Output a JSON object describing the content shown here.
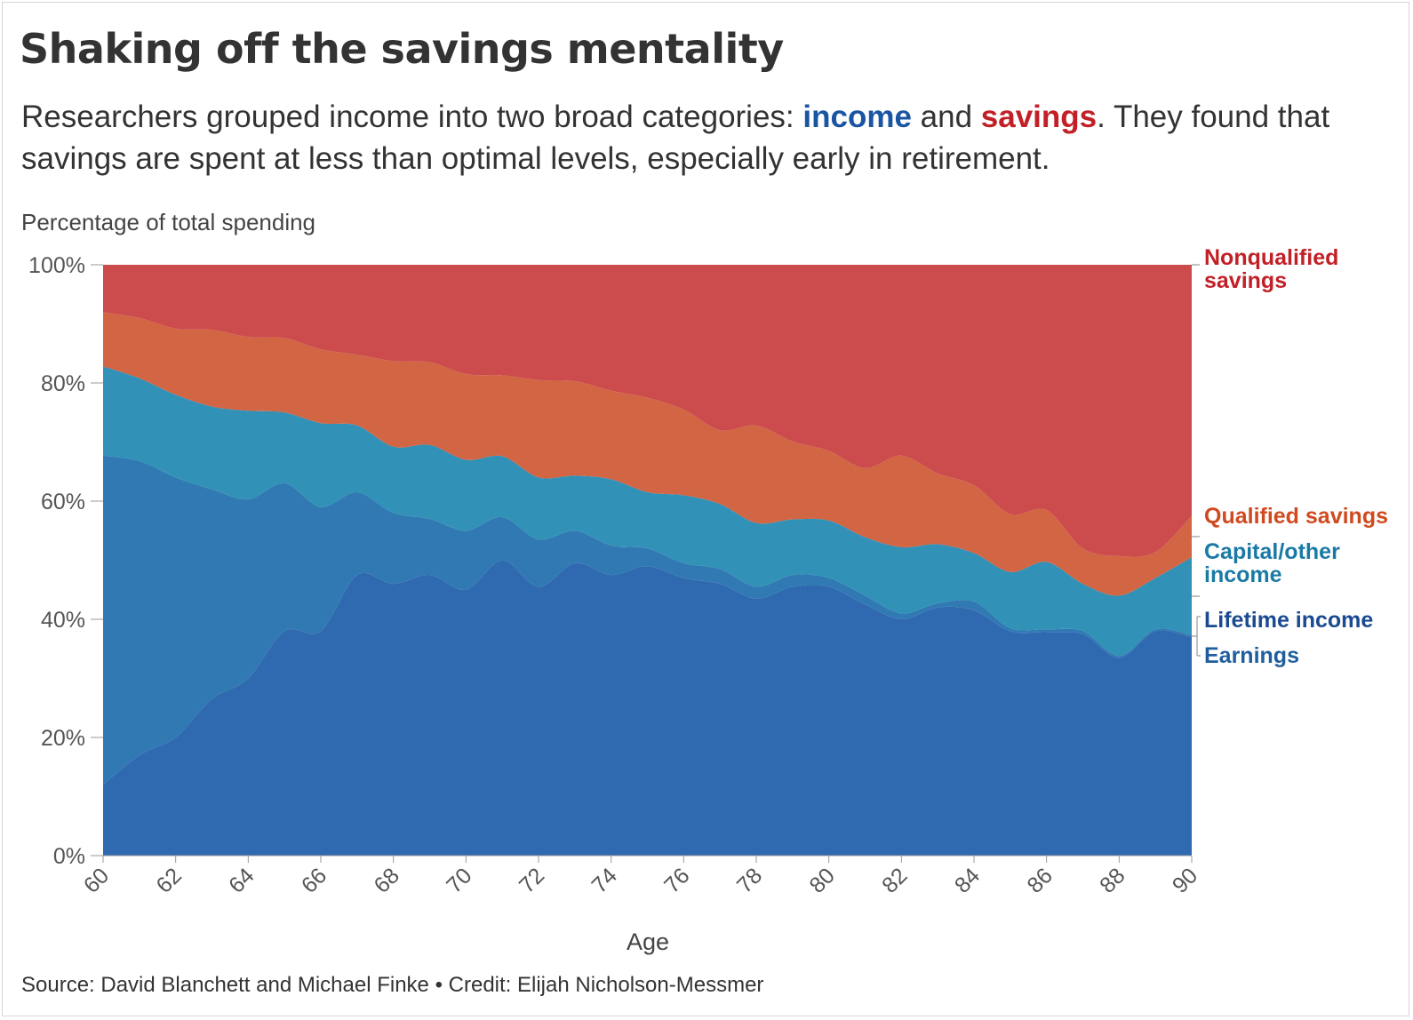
{
  "title": "Shaking off the savings mentality",
  "subtitle": {
    "part1": "Researchers grouped income into two broad categories: ",
    "income": "income",
    "part2": " and ",
    "savings": "savings",
    "part3": ". They found that savings are spent at less than optimal levels, especially early in retirement."
  },
  "source": "Source: David Blanchett and Michael Finke • Credit: Elijah Nicholson-Messmer",
  "colors": {
    "earnings": "#2f69b0",
    "lifetime_income": "#3079b3",
    "capital_other_income": "#3191b7",
    "qualified_savings": "#d26544",
    "nonqualified_savings": "#cc4b4c",
    "income_text": "#1a55a4",
    "savings_text": "#c22026",
    "qualified_text": "#d04a1f",
    "capital_text": "#1a7aa6",
    "lifetime_text": "#1a4a91",
    "earnings_text": "#1f5e9e"
  },
  "chart_data": {
    "type": "area",
    "stacked": true,
    "ylabel": "Percentage of total spending",
    "xlabel": "Age",
    "ylim": [
      0,
      100
    ],
    "yticks": [
      0,
      20,
      40,
      60,
      80,
      100
    ],
    "ytick_labels": [
      "0%",
      "20%",
      "40%",
      "60%",
      "80%",
      "100%"
    ],
    "xlim": [
      60,
      90
    ],
    "xticks": [
      60,
      62,
      64,
      66,
      68,
      70,
      72,
      74,
      76,
      78,
      80,
      82,
      84,
      86,
      88,
      90
    ],
    "x": [
      60,
      61,
      62,
      63,
      64,
      65,
      66,
      67,
      68,
      69,
      70,
      71,
      72,
      73,
      74,
      75,
      76,
      77,
      78,
      79,
      80,
      81,
      82,
      83,
      84,
      85,
      86,
      87,
      88,
      89,
      90
    ],
    "series": [
      {
        "key": "earnings",
        "name": "Earnings",
        "values": [
          12,
          17,
          20,
          26.5,
          30,
          38,
          38,
          47.5,
          46,
          47.5,
          45,
          50,
          45.5,
          49.5,
          47.5,
          49,
          47,
          46,
          43.5,
          45.5,
          45.5,
          42.5,
          40,
          42,
          41.5,
          38,
          37.8,
          37.5,
          33.5,
          38,
          37
        ]
      },
      {
        "key": "lifetime_income",
        "name": "Lifetime income",
        "values": [
          55.7,
          49.8,
          44,
          35.5,
          30.3,
          25,
          21,
          14,
          12,
          9.5,
          10,
          7.3,
          8,
          5.5,
          5,
          3,
          2.5,
          2.5,
          2,
          2,
          1.5,
          1.5,
          1,
          0.7,
          1.5,
          0.5,
          0.5,
          0.5,
          0.3,
          0.3,
          0.3
        ]
      },
      {
        "key": "capital_other_income",
        "name": "Capital/other income",
        "values": [
          15.1,
          14,
          14,
          14,
          15,
          12,
          14.2,
          11.3,
          11.2,
          12.5,
          12,
          10.3,
          10.5,
          9.3,
          11.2,
          9.5,
          11.5,
          11,
          10.8,
          9.4,
          9.7,
          9.9,
          11.2,
          10,
          8.2,
          9.5,
          11.4,
          8,
          10.2,
          8.7,
          13.2
        ]
      },
      {
        "key": "qualified_savings",
        "name": "Qualified savings",
        "values": [
          9.2,
          10.2,
          11.2,
          13,
          12.5,
          12.6,
          12.5,
          12,
          14.5,
          14,
          14.5,
          13.7,
          16.5,
          16,
          15,
          16,
          14.5,
          12.5,
          16.5,
          13.2,
          11.8,
          11.7,
          15.5,
          12,
          11.5,
          9.8,
          8.8,
          6,
          6.7,
          4.4,
          7
        ]
      },
      {
        "key": "nonqualified_savings",
        "name": "Nonqualified savings",
        "values": [
          8,
          9,
          10.8,
          11,
          12.2,
          12.4,
          14.3,
          15.2,
          16.3,
          16.5,
          18.5,
          18.7,
          19.5,
          19.7,
          21.3,
          22.5,
          24.5,
          28,
          27.2,
          29.9,
          31.5,
          34.4,
          32.3,
          35.3,
          37.3,
          42.2,
          41.5,
          48,
          49.3,
          48.6,
          42.5
        ]
      }
    ],
    "labels": {
      "nonqualified_savings": [
        "Nonqualified",
        "savings"
      ],
      "qualified_savings": [
        "Qualified savings"
      ],
      "capital_other_income": [
        "Capital/other",
        "income"
      ],
      "lifetime_income": [
        "Lifetime income"
      ],
      "earnings": [
        "Earnings"
      ]
    }
  }
}
